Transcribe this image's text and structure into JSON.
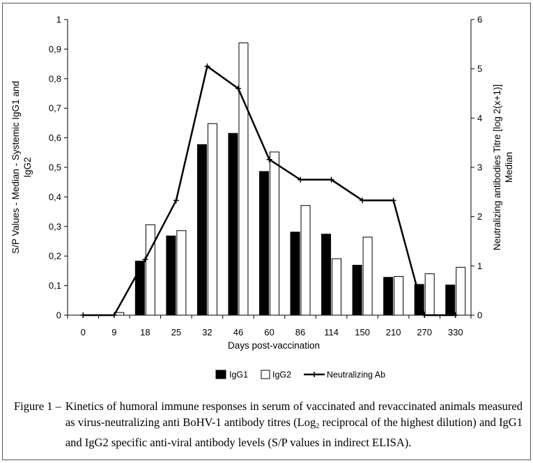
{
  "chart_data": {
    "type": "bar",
    "categories": [
      "0",
      "9",
      "18",
      "25",
      "32",
      "46",
      "60",
      "86",
      "114",
      "150",
      "210",
      "270",
      "330"
    ],
    "series": [
      {
        "name": "IgG1",
        "kind": "bar",
        "axis": "left",
        "color": "#000000",
        "values": [
          0,
          0,
          0.183,
          0.268,
          0.577,
          0.615,
          0.486,
          0.281,
          0.274,
          0.169,
          0.128,
          0.104,
          0.102
        ]
      },
      {
        "name": "IgG2",
        "kind": "bar",
        "axis": "left",
        "color": "#ffffff",
        "values": [
          0,
          0.009,
          0.306,
          0.286,
          0.648,
          0.921,
          0.552,
          0.371,
          0.191,
          0.264,
          0.131,
          0.14,
          0.162
        ]
      },
      {
        "name": "Neutralizing Ab",
        "kind": "line",
        "axis": "right",
        "color": "#000000",
        "values": [
          0,
          0,
          1.13,
          2.33,
          5.05,
          4.6,
          3.16,
          2.75,
          2.75,
          2.33,
          2.33,
          0,
          0
        ]
      }
    ],
    "xlabel": "Days post-vaccination",
    "ylabel": "S/P Values - Median - Systemic IgG1 and IgG2",
    "y2label": "Neutralizing antibodies Titre [log 2(x+1)] Median",
    "ylim": [
      0,
      1
    ],
    "yticks": [
      "0",
      "0,1",
      "0,2",
      "0,3",
      "0,4",
      "0,5",
      "0,6",
      "0,7",
      "0,8",
      "0,9",
      "1"
    ],
    "y2lim": [
      0,
      6
    ],
    "y2ticks": [
      "0",
      "1",
      "2",
      "3",
      "4",
      "5",
      "6"
    ],
    "grid": false,
    "legend_position": "bottom"
  },
  "caption": {
    "label": "Figure 1 –",
    "text_before_sub": "Kinetics of humoral immune responses in serum of vaccinated and revaccinated animals measured as virus-neutralizing anti BoHV-1 antibody titres (Log",
    "sub": "2",
    "text_after_sub": " reciprocal of the highest dilution) and IgG1 and IgG2 specific anti-viral antibody levels (S/P values in indirect ELISA)."
  }
}
